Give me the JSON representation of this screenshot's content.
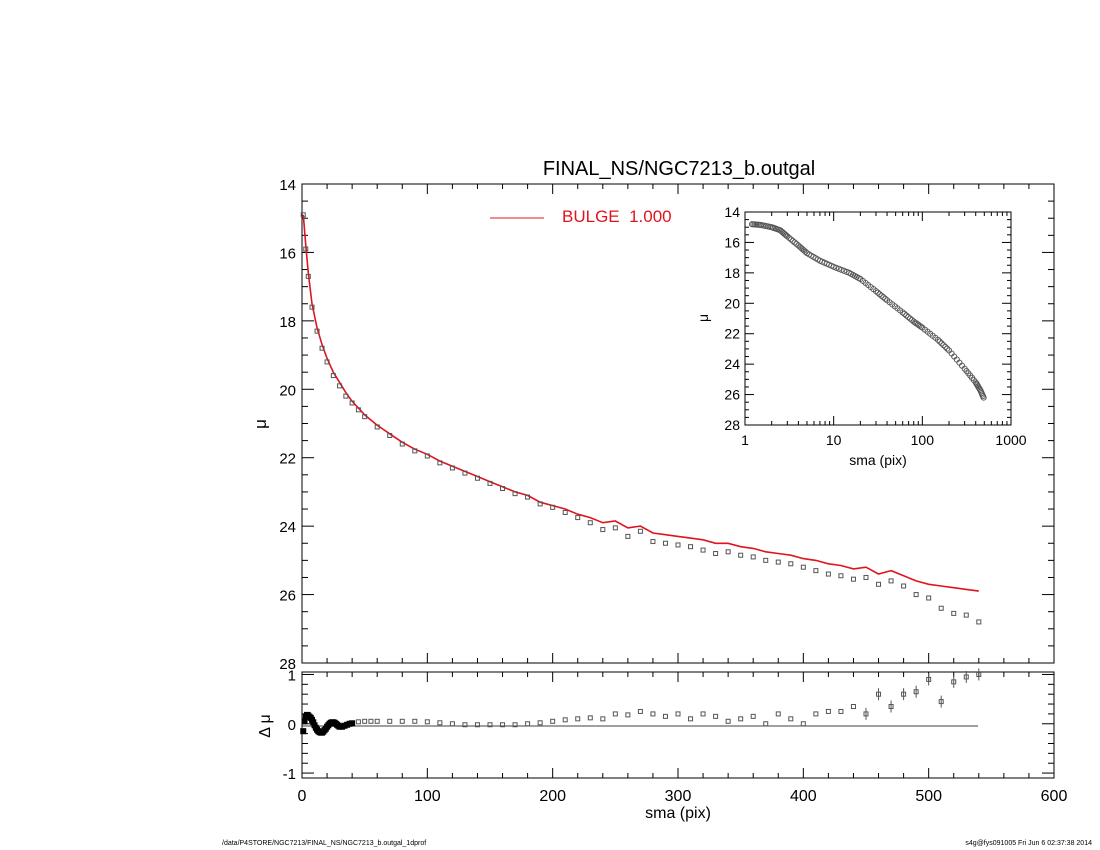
{
  "chart_data": [
    {
      "id": "main",
      "type": "scatter",
      "title": "FINAL_NS/NGC7213_b.outgal",
      "xlabel": "",
      "ylabel": "μ",
      "xlim": [
        0,
        600
      ],
      "ylim": [
        28,
        14
      ],
      "y_inverted": true,
      "x_tick_labels": [
        "0",
        "100",
        "200",
        "300",
        "400",
        "500",
        "600"
      ],
      "y_tick_labels": [
        "14",
        "16",
        "18",
        "20",
        "22",
        "24",
        "26",
        "28"
      ],
      "legend": {
        "placement": "top-center",
        "entries": [
          {
            "label": "BULGE  1.000",
            "color": "#e0141e"
          }
        ]
      },
      "colors": {
        "data": "#555555",
        "model": "#e0141e"
      },
      "series": [
        {
          "name": "data",
          "style": "open-square",
          "x": [
            1,
            3,
            5,
            8,
            12,
            16,
            20,
            25,
            30,
            35,
            40,
            45,
            50,
            60,
            70,
            80,
            90,
            100,
            110,
            120,
            130,
            140,
            150,
            160,
            170,
            180,
            190,
            200,
            210,
            220,
            230,
            240,
            250,
            260,
            270,
            280,
            290,
            300,
            310,
            320,
            330,
            340,
            350,
            360,
            370,
            380,
            390,
            400,
            410,
            420,
            430,
            440,
            450,
            460,
            470,
            480,
            490,
            500,
            510,
            520,
            530,
            540
          ],
          "y": [
            14.9,
            15.9,
            16.7,
            17.6,
            18.3,
            18.8,
            19.2,
            19.6,
            19.9,
            20.2,
            20.4,
            20.6,
            20.8,
            21.1,
            21.35,
            21.6,
            21.8,
            21.95,
            22.15,
            22.3,
            22.45,
            22.6,
            22.75,
            22.9,
            23.05,
            23.15,
            23.35,
            23.45,
            23.6,
            23.75,
            23.9,
            24.1,
            24.05,
            24.3,
            24.15,
            24.45,
            24.5,
            24.55,
            24.6,
            24.7,
            24.8,
            24.75,
            24.85,
            24.9,
            25.0,
            25.05,
            25.1,
            25.2,
            25.3,
            25.4,
            25.45,
            25.55,
            25.5,
            25.7,
            25.6,
            25.75,
            26.0,
            26.1,
            26.4,
            26.55,
            26.6,
            26.8
          ]
        },
        {
          "name": "BULGE  1.000",
          "style": "line",
          "x": [
            1,
            3,
            5,
            8,
            12,
            16,
            20,
            25,
            30,
            35,
            40,
            45,
            50,
            60,
            70,
            80,
            90,
            100,
            110,
            120,
            130,
            140,
            150,
            160,
            170,
            180,
            190,
            200,
            210,
            220,
            230,
            240,
            250,
            260,
            270,
            280,
            290,
            300,
            310,
            320,
            330,
            340,
            350,
            360,
            370,
            380,
            390,
            400,
            410,
            420,
            430,
            440,
            450,
            460,
            470,
            480,
            490,
            500,
            510,
            520,
            530,
            540
          ],
          "y": [
            14.9,
            15.8,
            16.6,
            17.5,
            18.2,
            18.7,
            19.1,
            19.5,
            19.8,
            20.1,
            20.35,
            20.55,
            20.75,
            21.05,
            21.3,
            21.55,
            21.75,
            21.9,
            22.1,
            22.25,
            22.4,
            22.55,
            22.7,
            22.85,
            23.0,
            23.1,
            23.3,
            23.4,
            23.5,
            23.65,
            23.75,
            23.9,
            23.85,
            24.05,
            24.0,
            24.2,
            24.25,
            24.3,
            24.35,
            24.4,
            24.5,
            24.5,
            24.6,
            24.65,
            24.75,
            24.8,
            24.85,
            24.95,
            25.0,
            25.1,
            25.15,
            25.25,
            25.2,
            25.4,
            25.3,
            25.45,
            25.6,
            25.7,
            25.75,
            25.8,
            25.85,
            25.9
          ]
        }
      ]
    },
    {
      "id": "residual",
      "type": "scatter",
      "xlabel": "sma (pix)",
      "ylabel": "Δ μ",
      "xlim": [
        0,
        600
      ],
      "ylim": [
        -1.1,
        1.05
      ],
      "x_tick_labels": [
        "0",
        "100",
        "200",
        "300",
        "400",
        "500",
        "600"
      ],
      "y_tick_labels": [
        "1",
        "0",
        "-1"
      ],
      "zero_line": true,
      "series": [
        {
          "name": "residual",
          "style": "open-square",
          "x": [
            1,
            2,
            3,
            4,
            5,
            6,
            7,
            8,
            9,
            10,
            11,
            12,
            13,
            14,
            15,
            16,
            17,
            18,
            19,
            20,
            21,
            22,
            23,
            24,
            25,
            26,
            27,
            28,
            29,
            30,
            32,
            34,
            36,
            38,
            40,
            45,
            50,
            55,
            60,
            70,
            80,
            90,
            100,
            110,
            120,
            130,
            140,
            150,
            160,
            170,
            180,
            190,
            200,
            210,
            220,
            230,
            240,
            250,
            260,
            270,
            280,
            290,
            300,
            310,
            320,
            330,
            340,
            350,
            360,
            370,
            380,
            390,
            400,
            410,
            420,
            430,
            440,
            450,
            460,
            470,
            480,
            490,
            500,
            510,
            520,
            530,
            540
          ],
          "y": [
            -0.15,
            0.05,
            0.15,
            0.18,
            0.17,
            0.14,
            0.12,
            0.08,
            0.03,
            -0.03,
            -0.08,
            -0.12,
            -0.15,
            -0.17,
            -0.18,
            -0.18,
            -0.16,
            -0.13,
            -0.1,
            -0.06,
            -0.03,
            0.0,
            0.02,
            0.03,
            0.03,
            0.02,
            0.0,
            -0.02,
            -0.04,
            -0.06,
            -0.06,
            -0.04,
            -0.02,
            0.0,
            0.01,
            0.04,
            0.05,
            0.05,
            0.05,
            0.05,
            0.05,
            0.05,
            0.04,
            0.02,
            0.0,
            -0.02,
            -0.02,
            -0.02,
            -0.02,
            -0.02,
            0.0,
            0.02,
            0.05,
            0.08,
            0.1,
            0.12,
            0.1,
            0.2,
            0.18,
            0.25,
            0.2,
            0.15,
            0.2,
            0.1,
            0.2,
            0.15,
            0.05,
            0.1,
            0.15,
            0.0,
            0.2,
            0.1,
            0.0,
            0.2,
            0.25,
            0.25,
            0.35,
            0.2,
            0.6,
            0.35,
            0.6,
            0.65,
            0.9,
            0.45,
            0.85,
            0.95,
            1.0
          ]
        }
      ]
    },
    {
      "id": "inset",
      "type": "scatter",
      "xlabel": "sma (pix)",
      "ylabel": "μ",
      "x_scale": "log",
      "xlim": [
        1,
        1000
      ],
      "ylim": [
        28,
        14
      ],
      "y_inverted": true,
      "x_tick_labels": [
        "1",
        "10",
        "100",
        "1000"
      ],
      "y_tick_labels": [
        "14",
        "16",
        "18",
        "20",
        "22",
        "24",
        "26",
        "28"
      ],
      "series": [
        {
          "name": "data",
          "style": "open-circle",
          "x": [
            1.2,
            1.5,
            2,
            2.5,
            3,
            4,
            5,
            7,
            10,
            15,
            20,
            30,
            40,
            60,
            80,
            100,
            150,
            200,
            300,
            400,
            450,
            500
          ],
          "y": [
            14.8,
            14.85,
            15.0,
            15.2,
            15.6,
            16.2,
            16.7,
            17.2,
            17.6,
            18.0,
            18.4,
            19.2,
            19.8,
            20.6,
            21.2,
            21.6,
            22.4,
            23.1,
            24.3,
            25.2,
            25.7,
            26.3
          ]
        }
      ]
    }
  ],
  "footer": {
    "left": "/data/P4STORE/NGC7213/FINAL_NS/NGC7213_b.outgal_1dprof",
    "right": "s4g@fys091005  Fri Jun  6 02:37:38 2014"
  }
}
